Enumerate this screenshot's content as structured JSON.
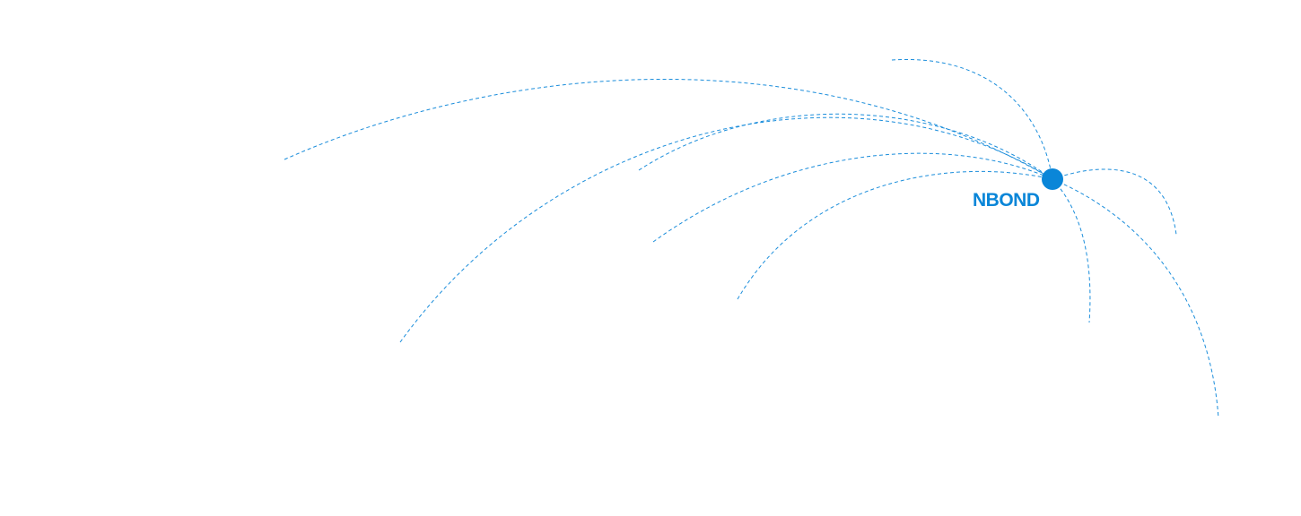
{
  "node": {
    "label": "NBOND",
    "color": "#0a86d8"
  },
  "line_color": "#1a8ddb"
}
